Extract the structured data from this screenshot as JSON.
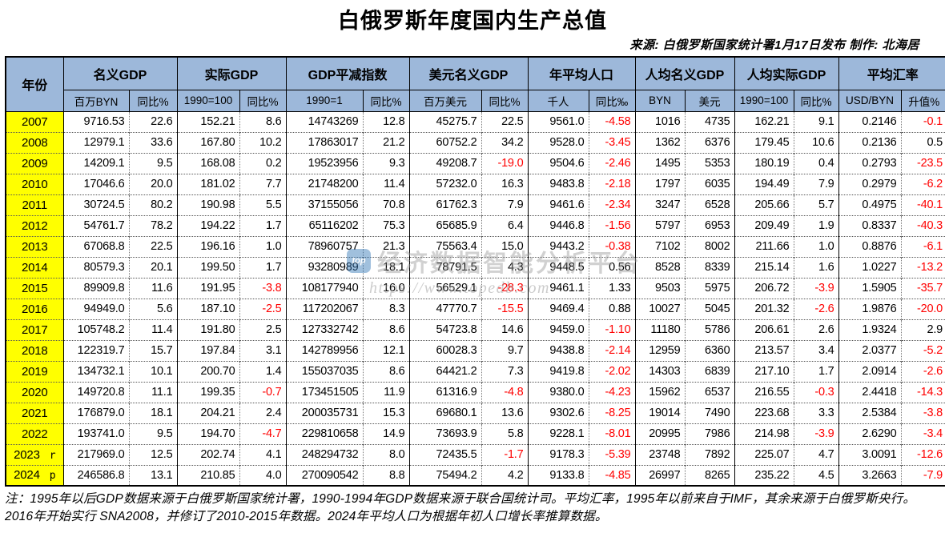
{
  "title": "白俄罗斯年度国内生产总值",
  "source_line": "来源: 白俄罗斯国家统计署1月17日发布 制作: 北海居",
  "colors": {
    "header_bg": "#9db8da",
    "year_col_bg": "#ffff00",
    "negative_value": "#ff0000",
    "text": "#000000"
  },
  "watermark": {
    "logo_text": "top",
    "text": "经济数据智能分析平台",
    "url": "https://www.topedb.com"
  },
  "table": {
    "year_header": "年份",
    "groups": [
      {
        "label": "名义GDP",
        "sub": [
          "百万BYN",
          "同比%"
        ]
      },
      {
        "label": "实际GDP",
        "sub": [
          "1990=100",
          "同比%"
        ]
      },
      {
        "label": "GDP平减指数",
        "sub": [
          "1990=1",
          "同比%"
        ]
      },
      {
        "label": "美元名义GDP",
        "sub": [
          "百万美元",
          "同比%"
        ]
      },
      {
        "label": "年平均人口",
        "sub": [
          "千人",
          "同比‰"
        ]
      },
      {
        "label": "人均名义GDP",
        "sub": [
          "BYN",
          "美元"
        ]
      },
      {
        "label": "人均实际GDP",
        "sub": [
          "1990=100",
          "同比%"
        ]
      },
      {
        "label": "平均汇率",
        "sub": [
          "USD/BYN",
          "升值%"
        ]
      }
    ],
    "rows": [
      {
        "year": "2007",
        "suffix": "",
        "v": [
          "9716.53",
          "22.6",
          "152.21",
          "8.6",
          "14743269",
          "12.8",
          "45275.7",
          "22.5",
          "9561.0",
          "-4.58",
          "1016",
          "4735",
          "162.21",
          "9.1",
          "0.2146",
          "-0.1"
        ]
      },
      {
        "year": "2008",
        "suffix": "",
        "v": [
          "12979.1",
          "33.6",
          "167.80",
          "10.2",
          "17863017",
          "21.2",
          "60752.2",
          "34.2",
          "9528.0",
          "-3.45",
          "1362",
          "6376",
          "179.45",
          "10.6",
          "0.2136",
          "0.5"
        ]
      },
      {
        "year": "2009",
        "suffix": "",
        "v": [
          "14209.1",
          "9.5",
          "168.08",
          "0.2",
          "19523956",
          "9.3",
          "49208.7",
          "-19.0",
          "9504.6",
          "-2.46",
          "1495",
          "5353",
          "180.19",
          "0.4",
          "0.2793",
          "-23.5"
        ]
      },
      {
        "year": "2010",
        "suffix": "",
        "v": [
          "17046.6",
          "20.0",
          "181.02",
          "7.7",
          "21748200",
          "11.4",
          "57232.0",
          "16.3",
          "9483.8",
          "-2.18",
          "1797",
          "6035",
          "194.49",
          "7.9",
          "0.2979",
          "-6.2"
        ]
      },
      {
        "year": "2011",
        "suffix": "",
        "v": [
          "30724.5",
          "80.2",
          "190.98",
          "5.5",
          "37155056",
          "70.8",
          "61762.3",
          "7.9",
          "9461.6",
          "-2.34",
          "3247",
          "6528",
          "205.66",
          "5.7",
          "0.4975",
          "-40.1"
        ]
      },
      {
        "year": "2012",
        "suffix": "",
        "v": [
          "54761.7",
          "78.2",
          "194.22",
          "1.7",
          "65116202",
          "75.3",
          "65685.9",
          "6.4",
          "9446.8",
          "-1.56",
          "5797",
          "6953",
          "209.49",
          "1.9",
          "0.8337",
          "-40.3"
        ]
      },
      {
        "year": "2013",
        "suffix": "",
        "v": [
          "67068.8",
          "22.5",
          "196.16",
          "1.0",
          "78960757",
          "21.3",
          "75563.4",
          "15.0",
          "9443.2",
          "-0.38",
          "7102",
          "8002",
          "211.66",
          "1.0",
          "0.8876",
          "-6.1"
        ]
      },
      {
        "year": "2014",
        "suffix": "",
        "v": [
          "80579.3",
          "20.1",
          "199.50",
          "1.7",
          "93280989",
          "18.1",
          "78791.5",
          "4.3",
          "9448.5",
          "0.56",
          "8528",
          "8339",
          "215.14",
          "1.6",
          "1.0227",
          "-13.2"
        ]
      },
      {
        "year": "2015",
        "suffix": "",
        "v": [
          "89909.8",
          "11.6",
          "191.95",
          "-3.8",
          "108177940",
          "16.0",
          "56529.1",
          "-28.3",
          "9461.1",
          "1.33",
          "9503",
          "5975",
          "206.72",
          "-3.9",
          "1.5905",
          "-35.7"
        ]
      },
      {
        "year": "2016",
        "suffix": "",
        "v": [
          "94949.0",
          "5.6",
          "187.10",
          "-2.5",
          "117202067",
          "8.3",
          "47770.7",
          "-15.5",
          "9469.4",
          "0.88",
          "10027",
          "5045",
          "201.32",
          "-2.6",
          "1.9876",
          "-20.0"
        ]
      },
      {
        "year": "2017",
        "suffix": "",
        "v": [
          "105748.2",
          "11.4",
          "191.80",
          "2.5",
          "127332742",
          "8.6",
          "54723.8",
          "14.6",
          "9459.0",
          "-1.10",
          "11180",
          "5786",
          "206.61",
          "2.6",
          "1.9324",
          "2.9"
        ]
      },
      {
        "year": "2018",
        "suffix": "",
        "v": [
          "122319.7",
          "15.7",
          "197.84",
          "3.1",
          "142789956",
          "12.1",
          "60028.3",
          "9.7",
          "9438.8",
          "-2.14",
          "12959",
          "6360",
          "213.57",
          "3.4",
          "2.0377",
          "-5.2"
        ]
      },
      {
        "year": "2019",
        "suffix": "",
        "v": [
          "134732.1",
          "10.1",
          "200.70",
          "1.4",
          "155037035",
          "8.6",
          "64421.2",
          "7.3",
          "9419.8",
          "-2.02",
          "14303",
          "6839",
          "217.10",
          "1.7",
          "2.0914",
          "-2.6"
        ]
      },
      {
        "year": "2020",
        "suffix": "",
        "v": [
          "149720.8",
          "11.1",
          "199.35",
          "-0.7",
          "173451505",
          "11.9",
          "61316.9",
          "-4.8",
          "9380.0",
          "-4.23",
          "15962",
          "6537",
          "216.55",
          "-0.3",
          "2.4418",
          "-14.3"
        ]
      },
      {
        "year": "2021",
        "suffix": "",
        "v": [
          "176879.0",
          "18.1",
          "204.21",
          "2.4",
          "200035731",
          "15.3",
          "69680.1",
          "13.6",
          "9302.6",
          "-8.25",
          "19014",
          "7490",
          "223.68",
          "3.3",
          "2.5384",
          "-3.8"
        ]
      },
      {
        "year": "2022",
        "suffix": "",
        "v": [
          "193741.0",
          "9.5",
          "194.70",
          "-4.7",
          "229810658",
          "14.9",
          "73693.9",
          "5.8",
          "9228.1",
          "-8.01",
          "20995",
          "7986",
          "214.98",
          "-3.9",
          "2.6290",
          "-3.4"
        ]
      },
      {
        "year": "2023",
        "suffix": "r",
        "v": [
          "217969.0",
          "12.5",
          "202.74",
          "4.1",
          "248294732",
          "8.0",
          "72435.5",
          "-1.7",
          "9178.3",
          "-5.39",
          "23748",
          "7892",
          "225.07",
          "4.7",
          "3.0091",
          "-12.6"
        ]
      },
      {
        "year": "2024",
        "suffix": "p",
        "v": [
          "246586.8",
          "13.1",
          "210.85",
          "4.0",
          "270090542",
          "8.8",
          "75494.2",
          "4.2",
          "9133.8",
          "-4.85",
          "26997",
          "8265",
          "235.22",
          "4.5",
          "3.2663",
          "-7.9"
        ]
      }
    ]
  },
  "note": "注：1995年以后GDP数据来源于白俄罗斯国家统计署，1990-1994年GDP数据来源于联合国统计司。平均汇率，1995年以前来自于IMF，其余来源于白俄罗斯央行。2016年开始实行 SNA2008，并修订了2010-2015年数据。2024年平均人口为根据年初人口增长率推算数据。"
}
